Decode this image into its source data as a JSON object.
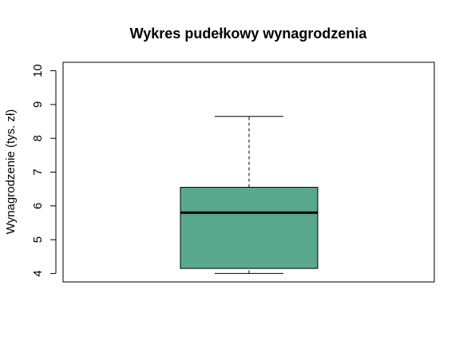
{
  "chart_data": {
    "type": "boxplot",
    "title": "Wykres pudełkowy wynagrodzenia",
    "ylabel": "Wynagrodzenie (tys. zł)",
    "xlabel": "",
    "ylim": [
      3.75,
      10.25
    ],
    "yticks": [
      4,
      5,
      6,
      7,
      8,
      9,
      10
    ],
    "box": {
      "min": 4.0,
      "q1": 4.15,
      "median": 5.8,
      "q3": 6.55,
      "max": 8.65
    },
    "fill_color": "#5aa88e",
    "line_color": "#000000",
    "grid": false
  }
}
